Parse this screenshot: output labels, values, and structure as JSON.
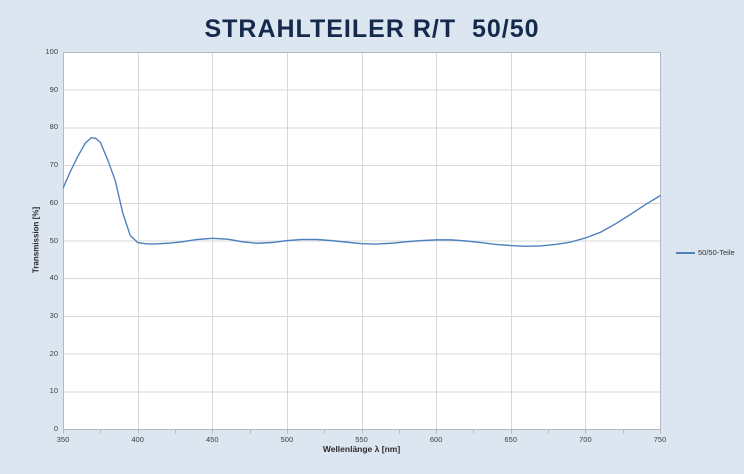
{
  "colors": {
    "background": "#dce6f1",
    "title_text": "#14294b",
    "plot_bg": "#ffffff",
    "plot_border": "#b3bac4",
    "gridline": "#d9d9d9",
    "tick_mark": "#b3bac4",
    "tick_text": "#3f3f3f",
    "series_line": "#4f81bd"
  },
  "legend": {
    "label": "50/50-Teile"
  },
  "chart_data": {
    "type": "line",
    "title": "STRAHLTEILER R/T  50/50",
    "xlabel": "Wellenlänge λ [nm]",
    "ylabel": "Transmission [%]",
    "xlim": [
      350,
      750
    ],
    "ylim": [
      0,
      100
    ],
    "x_ticks": [
      350,
      400,
      450,
      500,
      550,
      600,
      650,
      700,
      750
    ],
    "x_minor_tick_step": 25,
    "y_ticks": [
      0,
      10,
      20,
      30,
      40,
      50,
      60,
      70,
      80,
      90,
      100
    ],
    "grid": true,
    "legend_position": "right",
    "series": [
      {
        "name": "50/50-Teile",
        "color": "#4f81bd",
        "x": [
          350,
          355,
          360,
          365,
          369,
          372,
          375,
          380,
          385,
          390,
          395,
          400,
          405,
          410,
          415,
          420,
          425,
          430,
          435,
          440,
          450,
          460,
          470,
          480,
          490,
          500,
          510,
          520,
          530,
          540,
          550,
          560,
          570,
          580,
          590,
          600,
          610,
          620,
          630,
          640,
          650,
          660,
          670,
          680,
          690,
          700,
          710,
          720,
          730,
          740,
          750
        ],
        "values": [
          64,
          68.5,
          72.5,
          76,
          77.4,
          77.2,
          76.2,
          71.5,
          66,
          57.5,
          51.5,
          49.6,
          49.3,
          49.2,
          49.3,
          49.4,
          49.6,
          49.8,
          50.1,
          50.4,
          50.7,
          50.5,
          49.8,
          49.4,
          49.6,
          50.1,
          50.4,
          50.4,
          50.1,
          49.7,
          49.3,
          49.2,
          49.4,
          49.8,
          50.1,
          50.3,
          50.3,
          50.0,
          49.6,
          49.1,
          48.8,
          48.6,
          48.7,
          49.1,
          49.7,
          50.8,
          52.3,
          54.5,
          57.0,
          59.6,
          62.0
        ]
      }
    ]
  }
}
